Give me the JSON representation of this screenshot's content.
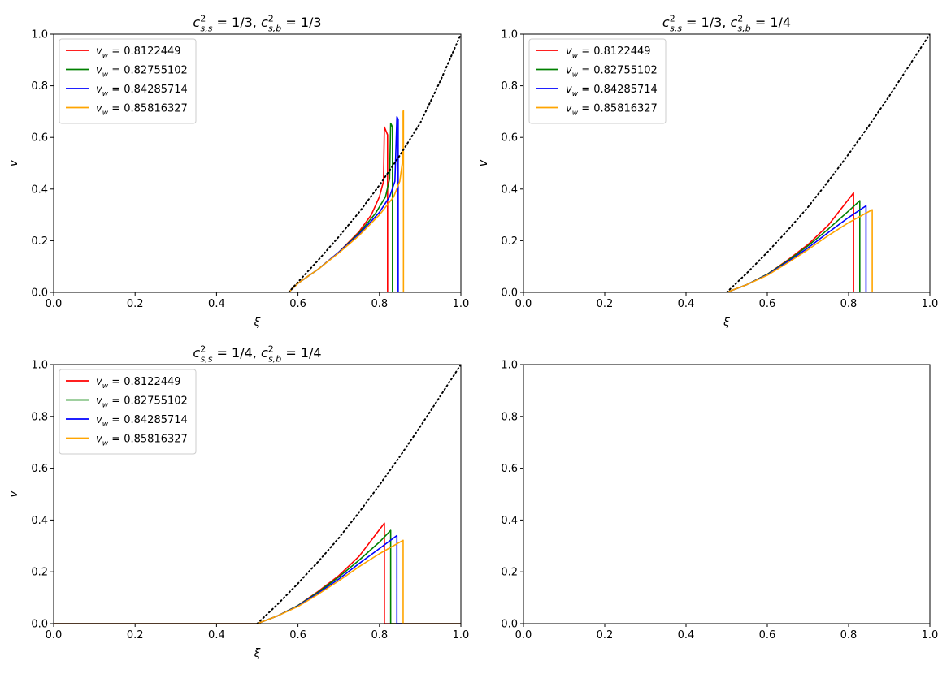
{
  "chart_data": [
    {
      "type": "line",
      "title": "c²s,s = 1/3, c²s,b = 1/3",
      "title_parts": {
        "a_sym": "c",
        "a_sup": "2",
        "a_sub": "s,s",
        "a_val": " = 1/3, ",
        "b_sym": "c",
        "b_sup": "2",
        "b_sub": "s,b",
        "b_val": " = 1/3"
      },
      "xlabel": "ξ",
      "ylabel": "v",
      "xlim": [
        0,
        1
      ],
      "ylim": [
        0,
        1
      ],
      "xticks": [
        "0.0",
        "0.2",
        "0.4",
        "0.6",
        "0.8",
        "1.0"
      ],
      "yticks": [
        "0.0",
        "0.2",
        "0.4",
        "0.6",
        "0.8",
        "1.0"
      ],
      "grid": false,
      "legend": "upper-left",
      "series": [
        {
          "name": "v_w = 0.8122449",
          "legend_sym": "v",
          "legend_sub": "w",
          "legend_val": " = 0.8122449",
          "color": "#ff0000",
          "x": [
            0.0,
            0.577,
            0.6,
            0.65,
            0.7,
            0.75,
            0.78,
            0.8,
            0.81,
            0.8122,
            0.8122,
            0.82,
            0.82,
            1.0
          ],
          "y": [
            0.0,
            0.0,
            0.035,
            0.09,
            0.155,
            0.235,
            0.3,
            0.37,
            0.43,
            0.64,
            0.64,
            0.61,
            0.0,
            0.0
          ]
        },
        {
          "name": "v_w = 0.82755102",
          "legend_sym": "v",
          "legend_sub": "w",
          "legend_val": " = 0.82755102",
          "color": "#008000",
          "x": [
            0.0,
            0.577,
            0.6,
            0.65,
            0.7,
            0.75,
            0.79,
            0.815,
            0.825,
            0.8276,
            0.8276,
            0.832,
            0.832,
            1.0
          ],
          "y": [
            0.0,
            0.0,
            0.035,
            0.09,
            0.155,
            0.23,
            0.305,
            0.37,
            0.44,
            0.655,
            0.655,
            0.64,
            0.0,
            0.0
          ]
        },
        {
          "name": "v_w = 0.84285714",
          "legend_sym": "v",
          "legend_sub": "w",
          "legend_val": " = 0.84285714",
          "color": "#0000ff",
          "x": [
            0.0,
            0.577,
            0.6,
            0.65,
            0.7,
            0.75,
            0.8,
            0.825,
            0.838,
            0.8429,
            0.8429,
            0.846,
            0.846,
            1.0
          ],
          "y": [
            0.0,
            0.0,
            0.035,
            0.09,
            0.155,
            0.225,
            0.31,
            0.37,
            0.43,
            0.68,
            0.68,
            0.67,
            0.0,
            0.0
          ]
        },
        {
          "name": "v_w = 0.85816327",
          "legend_sym": "v",
          "legend_sub": "w",
          "legend_val": " = 0.85816327",
          "color": "#ffa500",
          "x": [
            0.0,
            0.577,
            0.6,
            0.65,
            0.7,
            0.75,
            0.8,
            0.835,
            0.85,
            0.856,
            0.8582,
            0.8582,
            0.859,
            0.859,
            1.0
          ],
          "y": [
            0.0,
            0.0,
            0.035,
            0.09,
            0.152,
            0.22,
            0.3,
            0.37,
            0.43,
            0.5,
            0.55,
            0.7,
            0.705,
            0.0,
            0.0
          ]
        },
        {
          "name": "",
          "color": "#000000",
          "dotted": true,
          "x": [
            0.577,
            0.6,
            0.65,
            0.7,
            0.75,
            0.8,
            0.85,
            0.9,
            0.95,
            1.0
          ],
          "y": [
            0.0,
            0.04,
            0.125,
            0.215,
            0.31,
            0.415,
            0.53,
            0.655,
            0.82,
            1.0
          ]
        }
      ]
    },
    {
      "type": "line",
      "title": "c²s,s = 1/3, c²s,b = 1/4",
      "title_parts": {
        "a_sym": "c",
        "a_sup": "2",
        "a_sub": "s,s",
        "a_val": " = 1/3, ",
        "b_sym": "c",
        "b_sup": "2",
        "b_sub": "s,b",
        "b_val": " = 1/4"
      },
      "xlabel": "ξ",
      "ylabel": "v",
      "xlim": [
        0,
        1
      ],
      "ylim": [
        0,
        1
      ],
      "xticks": [
        "0.0",
        "0.2",
        "0.4",
        "0.6",
        "0.8",
        "1.0"
      ],
      "yticks": [
        "0.0",
        "0.2",
        "0.4",
        "0.6",
        "0.8",
        "1.0"
      ],
      "grid": false,
      "legend": "upper-left",
      "series": [
        {
          "name": "v_w = 0.8122449",
          "legend_sym": "v",
          "legend_sub": "w",
          "legend_val": " = 0.8122449",
          "color": "#ff0000",
          "x": [
            0.0,
            0.5,
            0.55,
            0.6,
            0.65,
            0.7,
            0.75,
            0.8122,
            0.8122,
            1.0
          ],
          "y": [
            0.0,
            0.0,
            0.03,
            0.07,
            0.125,
            0.185,
            0.26,
            0.385,
            0.0,
            0.0
          ]
        },
        {
          "name": "v_w = 0.82755102",
          "legend_sym": "v",
          "legend_sub": "w",
          "legend_val": " = 0.82755102",
          "color": "#008000",
          "x": [
            0.0,
            0.5,
            0.55,
            0.6,
            0.65,
            0.7,
            0.75,
            0.8,
            0.8276,
            0.8276,
            1.0
          ],
          "y": [
            0.0,
            0.0,
            0.03,
            0.07,
            0.122,
            0.18,
            0.245,
            0.315,
            0.355,
            0.0,
            0.0
          ]
        },
        {
          "name": "v_w = 0.84285714",
          "legend_sym": "v",
          "legend_sub": "w",
          "legend_val": " = 0.84285714",
          "color": "#0000ff",
          "x": [
            0.0,
            0.5,
            0.55,
            0.6,
            0.65,
            0.7,
            0.75,
            0.8,
            0.8429,
            0.8429,
            1.0
          ],
          "y": [
            0.0,
            0.0,
            0.03,
            0.068,
            0.118,
            0.172,
            0.232,
            0.29,
            0.335,
            0.0,
            0.0
          ]
        },
        {
          "name": "v_w = 0.85816327",
          "legend_sym": "v",
          "legend_sub": "w",
          "legend_val": " = 0.85816327",
          "color": "#ffa500",
          "x": [
            0.0,
            0.5,
            0.55,
            0.6,
            0.65,
            0.7,
            0.75,
            0.8,
            0.8582,
            0.8582,
            1.0
          ],
          "y": [
            0.0,
            0.0,
            0.03,
            0.066,
            0.114,
            0.165,
            0.22,
            0.27,
            0.32,
            0.0,
            0.0
          ]
        },
        {
          "name": "",
          "color": "#000000",
          "dotted": true,
          "x": [
            0.5,
            0.55,
            0.6,
            0.65,
            0.7,
            0.75,
            0.8,
            0.85,
            0.9,
            0.95,
            1.0
          ],
          "y": [
            0.0,
            0.075,
            0.155,
            0.24,
            0.33,
            0.43,
            0.535,
            0.645,
            0.76,
            0.88,
            1.0
          ]
        }
      ]
    },
    {
      "type": "line",
      "title": "c²s,s = 1/4, c²s,b = 1/4",
      "title_parts": {
        "a_sym": "c",
        "a_sup": "2",
        "a_sub": "s,s",
        "a_val": " = 1/4, ",
        "b_sym": "c",
        "b_sup": "2",
        "b_sub": "s,b",
        "b_val": " = 1/4"
      },
      "xlabel": "ξ",
      "ylabel": "v",
      "xlim": [
        0,
        1
      ],
      "ylim": [
        0,
        1
      ],
      "xticks": [
        "0.0",
        "0.2",
        "0.4",
        "0.6",
        "0.8",
        "1.0"
      ],
      "yticks": [
        "0.0",
        "0.2",
        "0.4",
        "0.6",
        "0.8",
        "1.0"
      ],
      "grid": false,
      "legend": "upper-left",
      "series": [
        {
          "name": "v_w = 0.8122449",
          "legend_sym": "v",
          "legend_sub": "w",
          "legend_val": " = 0.8122449",
          "color": "#ff0000",
          "x": [
            0.0,
            0.5,
            0.55,
            0.6,
            0.65,
            0.7,
            0.75,
            0.8122,
            0.8122,
            1.0
          ],
          "y": [
            0.0,
            0.0,
            0.03,
            0.07,
            0.125,
            0.185,
            0.26,
            0.388,
            0.0,
            0.0
          ]
        },
        {
          "name": "v_w = 0.82755102",
          "legend_sym": "v",
          "legend_sub": "w",
          "legend_val": " = 0.82755102",
          "color": "#008000",
          "x": [
            0.0,
            0.5,
            0.55,
            0.6,
            0.65,
            0.7,
            0.75,
            0.8,
            0.8276,
            0.8276,
            1.0
          ],
          "y": [
            0.0,
            0.0,
            0.03,
            0.07,
            0.122,
            0.18,
            0.245,
            0.315,
            0.36,
            0.0,
            0.0
          ]
        },
        {
          "name": "v_w = 0.84285714",
          "legend_sym": "v",
          "legend_sub": "w",
          "legend_val": " = 0.84285714",
          "color": "#0000ff",
          "x": [
            0.0,
            0.5,
            0.55,
            0.6,
            0.65,
            0.7,
            0.75,
            0.8,
            0.8429,
            0.8429,
            1.0
          ],
          "y": [
            0.0,
            0.0,
            0.03,
            0.068,
            0.118,
            0.172,
            0.232,
            0.29,
            0.34,
            0.0,
            0.0
          ]
        },
        {
          "name": "v_w = 0.85816327",
          "legend_sym": "v",
          "legend_sub": "w",
          "legend_val": " = 0.85816327",
          "color": "#ffa500",
          "x": [
            0.0,
            0.5,
            0.55,
            0.6,
            0.65,
            0.7,
            0.75,
            0.8,
            0.8582,
            0.8582,
            1.0
          ],
          "y": [
            0.0,
            0.0,
            0.03,
            0.066,
            0.114,
            0.165,
            0.22,
            0.27,
            0.322,
            0.0,
            0.0
          ]
        },
        {
          "name": "",
          "color": "#000000",
          "dotted": true,
          "x": [
            0.5,
            0.55,
            0.6,
            0.65,
            0.7,
            0.75,
            0.8,
            0.85,
            0.9,
            0.95,
            1.0
          ],
          "y": [
            0.0,
            0.075,
            0.155,
            0.24,
            0.33,
            0.43,
            0.535,
            0.645,
            0.76,
            0.88,
            1.0
          ]
        }
      ]
    },
    {
      "type": "line",
      "title": "",
      "xlabel": "",
      "ylabel": "",
      "xlim": [
        0,
        1
      ],
      "ylim": [
        0,
        1
      ],
      "xticks": [
        "0.0",
        "0.2",
        "0.4",
        "0.6",
        "0.8",
        "1.0"
      ],
      "yticks": [
        "0.0",
        "0.2",
        "0.4",
        "0.6",
        "0.8",
        "1.0"
      ],
      "grid": false,
      "series": []
    }
  ]
}
